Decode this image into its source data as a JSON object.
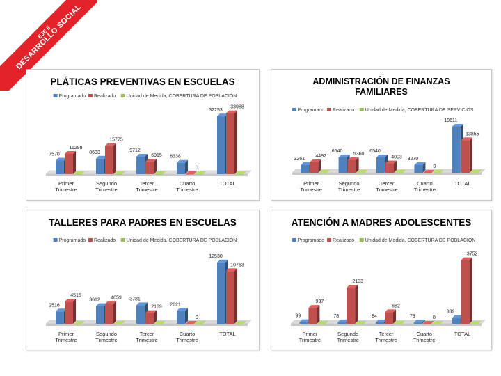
{
  "ribbon": {
    "line1": "EJE 5",
    "line2": "DESARROLLO SOCIAL"
  },
  "chart_data": [
    {
      "type": "bar",
      "title": "PLÁTICAS PREVENTIVAS EN ESCUELAS",
      "categories": [
        "Primer\nTrimestre",
        "Segundo\nTrimestre",
        "Tercer\nTrimestre",
        "Cuarto\nTrimestre",
        "TOTAL"
      ],
      "series": [
        {
          "name": "Programado",
          "values": [
            7570,
            8633,
            9712,
            6338,
            32253
          ],
          "labels": [
            "7570",
            "8633",
            "9712",
            "6338",
            "32253"
          ]
        },
        {
          "name": "Realizado",
          "values": [
            11298,
            15775,
            6915,
            0,
            33988
          ],
          "labels": [
            "11298",
            "15775",
            "6915",
            "0",
            "33988"
          ]
        },
        {
          "name": "Unidad de Medida, COBERTURA DE POBLACIÓN",
          "values": [
            0,
            0,
            0,
            0,
            0
          ],
          "labels": []
        }
      ],
      "ylim": [
        0,
        35000
      ],
      "legend": "top",
      "colors": [
        "#4f81bd",
        "#c0504d",
        "#9bbb59"
      ]
    },
    {
      "type": "bar",
      "title": "ADMINISTRACIÓN DE FINANZAS FAMILIARES",
      "categories": [
        "Primer\nTrimestre",
        "Segundo\nTrimestre",
        "Tercer\nTrimestre",
        "Cuarto\nTrimestre",
        "TOTAL"
      ],
      "series": [
        {
          "name": "Programado",
          "values": [
            3261,
            6540,
            6540,
            3270,
            19611
          ],
          "labels": [
            "3261",
            "6540",
            "6540",
            "3270",
            "19611"
          ]
        },
        {
          "name": "Realizado",
          "values": [
            4492,
            5360,
            4003,
            0,
            13855
          ],
          "labels": [
            "4492",
            "5360",
            "4003",
            "0",
            "13855"
          ]
        },
        {
          "name": "Unidad de Medida, COBERTURA DE SERVICIOS",
          "values": [
            0,
            0,
            0,
            0,
            0
          ],
          "labels": []
        }
      ],
      "ylim": [
        0,
        22000
      ],
      "legend": "top",
      "colors": [
        "#4f81bd",
        "#c0504d",
        "#9bbb59"
      ]
    },
    {
      "type": "bar",
      "title": "TALLERES PARA PADRES EN ESCUELAS",
      "categories": [
        "Primer\nTrimestre",
        "Segundo\nTrimestre",
        "Tercer\nTrimestre",
        "Cuarto\nTrimestre",
        "TOTAL"
      ],
      "series": [
        {
          "name": "Programado",
          "values": [
            2516,
            3612,
            3781,
            2621,
            12530
          ],
          "labels": [
            "2516",
            "3612",
            "3781",
            "2621",
            "12530"
          ]
        },
        {
          "name": "Realizado",
          "values": [
            4515,
            4059,
            2189,
            0,
            10763
          ],
          "labels": [
            "4515",
            "4059",
            "2189",
            "0",
            "10763"
          ]
        },
        {
          "name": "Unidad de Medida, COBERTURA DE POBLACIÓN",
          "values": [
            0,
            0,
            0,
            0,
            0
          ],
          "labels": []
        }
      ],
      "ylim": [
        0,
        13500
      ],
      "legend": "top",
      "colors": [
        "#4f81bd",
        "#c0504d",
        "#9bbb59"
      ]
    },
    {
      "type": "bar",
      "title": "ATENCIÓN A MADRES ADOLESCENTES",
      "categories": [
        "Primer\nTrimestre",
        "Segundo\nTrimestre",
        "Tercer\nTrimestre",
        "Cuarto\nTrimestre",
        "TOTAL"
      ],
      "series": [
        {
          "name": "Programado",
          "values": [
            99,
            78,
            84,
            78,
            339
          ],
          "labels": [
            "99",
            "78",
            "84",
            "78",
            "339"
          ]
        },
        {
          "name": "Realizado",
          "values": [
            937,
            2133,
            682,
            0,
            3752
          ],
          "labels": [
            "937",
            "2133",
            "682",
            "0",
            "3752"
          ]
        },
        {
          "name": "Unidad de Medida, COBERTURA DE POBLACIÓN",
          "values": [
            0,
            0,
            0,
            0,
            0
          ],
          "labels": []
        }
      ],
      "ylim": [
        0,
        3900
      ],
      "legend": "top",
      "colors": [
        "#4f81bd",
        "#c0504d",
        "#9bbb59"
      ]
    }
  ]
}
